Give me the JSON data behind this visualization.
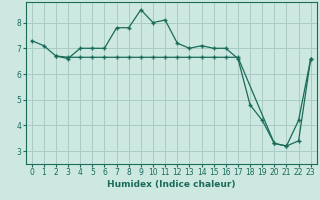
{
  "xlabel": "Humidex (Indice chaleur)",
  "background_color": "#cce8e0",
  "grid_color": "#aaccc4",
  "line_color": "#1a6b5a",
  "line1_x": [
    0,
    1,
    2,
    3,
    4,
    5,
    6,
    7,
    8,
    9,
    10,
    11,
    12,
    13,
    14,
    15,
    16,
    17,
    18,
    19,
    20,
    21,
    22,
    23
  ],
  "line1_y": [
    7.3,
    7.1,
    6.7,
    6.6,
    7.0,
    7.0,
    7.0,
    7.8,
    7.8,
    8.5,
    8.0,
    8.1,
    7.2,
    7.0,
    7.1,
    7.0,
    7.0,
    6.6,
    4.8,
    4.2,
    3.3,
    3.2,
    3.4,
    6.6
  ],
  "line2_x": [
    2,
    3,
    4,
    5,
    6,
    7,
    8,
    9,
    10,
    11,
    12,
    13,
    14,
    15,
    16,
    17,
    20,
    21,
    22,
    23
  ],
  "line2_y": [
    6.7,
    6.65,
    6.65,
    6.65,
    6.65,
    6.65,
    6.65,
    6.65,
    6.65,
    6.65,
    6.65,
    6.65,
    6.65,
    6.65,
    6.65,
    6.65,
    3.3,
    3.2,
    4.2,
    6.6
  ],
  "ylim": [
    2.5,
    8.8
  ],
  "xlim": [
    -0.5,
    23.5
  ],
  "yticks": [
    3,
    4,
    5,
    6,
    7,
    8
  ],
  "xticks": [
    0,
    1,
    2,
    3,
    4,
    5,
    6,
    7,
    8,
    9,
    10,
    11,
    12,
    13,
    14,
    15,
    16,
    17,
    18,
    19,
    20,
    21,
    22,
    23
  ],
  "tick_fontsize": 5.5,
  "xlabel_fontsize": 6.5
}
